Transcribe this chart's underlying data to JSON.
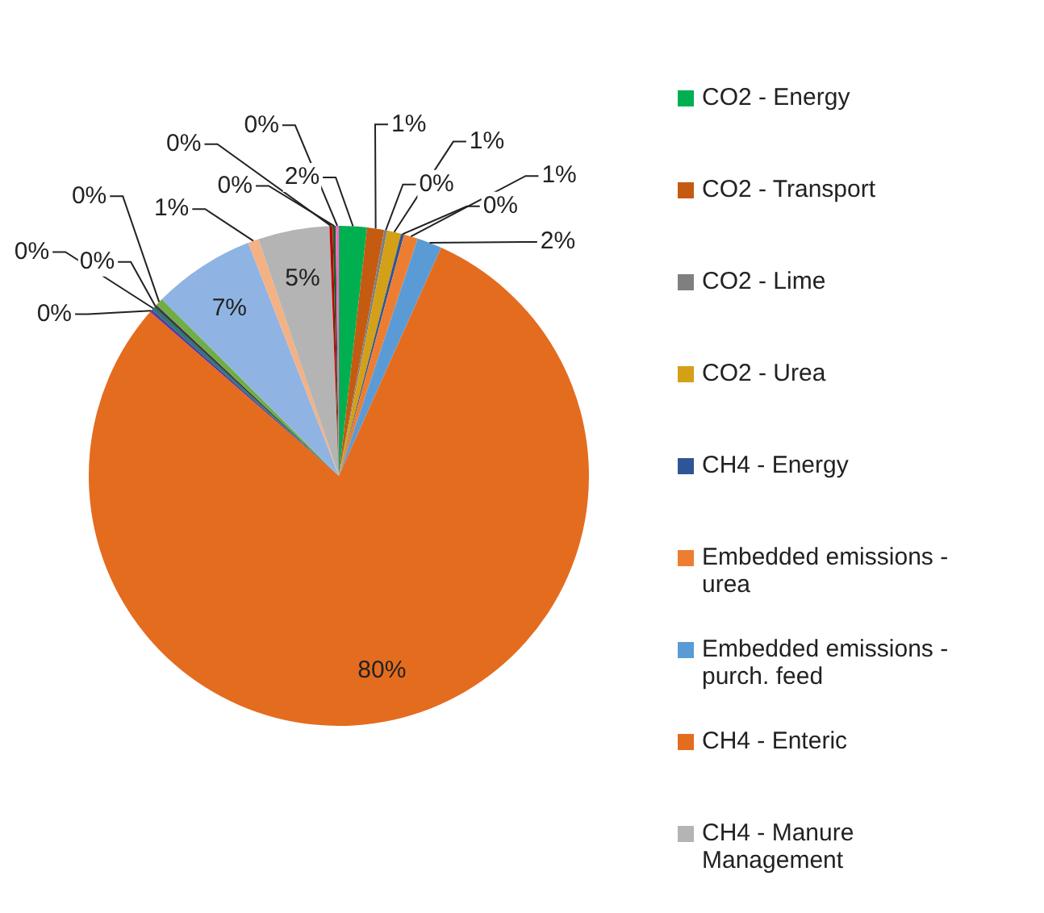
{
  "chart_data": {
    "type": "pie",
    "categories": [
      "CO2 - Energy",
      "CO2 - Transport",
      "CO2 - Lime",
      "CO2 - Urea",
      "CH4 - Energy",
      "Embedded emissions - urea",
      "Embedded emissions - purch. feed",
      "CH4 - Enteric",
      null,
      null,
      null,
      null,
      null,
      null,
      "CH4 - Manure Management",
      null,
      null,
      null
    ],
    "values": [
      1.8,
      1.1,
      0.2,
      0.9,
      0.2,
      0.9,
      1.6,
      79.6,
      0.2,
      0.2,
      0.2,
      0.5,
      6.6,
      0.7,
      4.6,
      0.2,
      0.2,
      0.2
    ],
    "colors": [
      "#00b050",
      "#c55a11",
      "#7f7f7f",
      "#d4a017",
      "#2f5597",
      "#ed7d31",
      "#5b9bd5",
      "#e46c1f",
      "#5e3c99",
      "#1f7a7a",
      "#3d3d3d",
      "#70ad47",
      "#8fb4e3",
      "#f4b183",
      "#b4b4b4",
      "#c00000",
      "#255e2c",
      "#ff66cc"
    ],
    "value_labels": [
      "2%",
      "1%",
      "0%",
      "1%",
      "0%",
      "1%",
      "2%",
      "80%",
      "0%",
      "0%",
      "0%",
      "0%",
      "7%",
      "1%",
      "5%",
      "0%",
      "0%",
      "0%"
    ],
    "legend": "right"
  }
}
